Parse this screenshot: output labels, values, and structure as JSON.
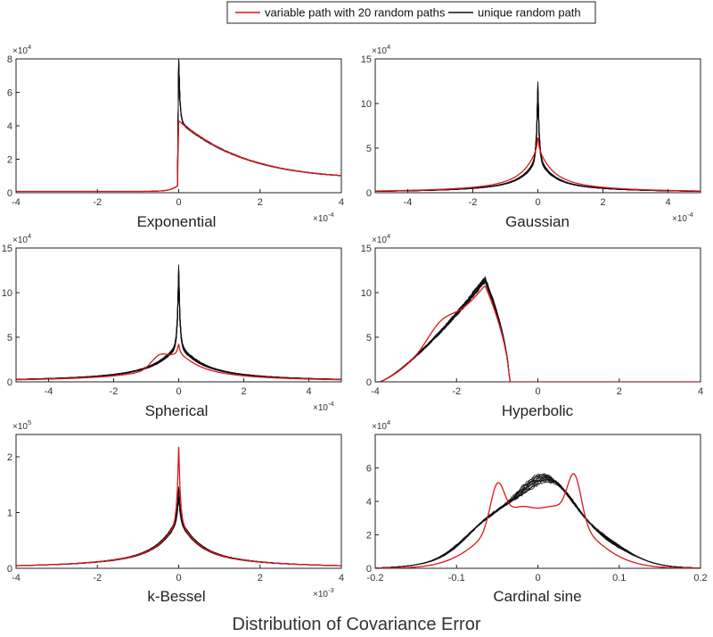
{
  "figure": {
    "title": "Distribution of Covariance Error",
    "legend": [
      {
        "label": "variable path with 20 random paths",
        "color": "#e0141b"
      },
      {
        "label": "unique random path",
        "color": "#111111"
      }
    ]
  },
  "chart_data": [
    {
      "type": "line",
      "title": "Exponential",
      "xlim": [
        -4,
        4
      ],
      "ylim": [
        0,
        8
      ],
      "xticks": [
        "-4",
        "-2",
        "0",
        "2",
        "4"
      ],
      "yticks": [
        "0",
        "2",
        "4",
        "6",
        "8"
      ],
      "x_multiplier": "×10",
      "x_exp": "-4",
      "y_multiplier": "×10",
      "y_exp": "4",
      "shape": "exp",
      "a": 0.08,
      "peak_black": 7.6,
      "peak_red": 4.5,
      "tail_end": 0.5,
      "tau": 1.9
    },
    {
      "type": "line",
      "title": "Gaussian",
      "xlim": [
        -5,
        5
      ],
      "ylim": [
        0,
        15
      ],
      "xticks": [
        "-4",
        "-2",
        "0",
        "2",
        "4"
      ],
      "yticks": [
        "0",
        "5",
        "10",
        "15"
      ],
      "x_multiplier": "×10",
      "x_exp": "-4",
      "y_multiplier": "×10",
      "y_exp": "4",
      "shape": "peak",
      "peak_black": 10.8,
      "peak_red": 6.0,
      "body_black": 3.3,
      "body_red": 4.6,
      "w": 0.45,
      "tail_w": 3.2
    },
    {
      "type": "line",
      "title": "Spherical",
      "xlim": [
        -5,
        5
      ],
      "ylim": [
        0,
        15
      ],
      "xticks": [
        "-4",
        "-2",
        "0",
        "2",
        "4"
      ],
      "yticks": [
        "0",
        "5",
        "10",
        "15"
      ],
      "x_multiplier": "×10",
      "x_exp": "-4",
      "y_multiplier": "×10",
      "y_exp": "4",
      "shape": "peak",
      "peak_black": 11.3,
      "peak_red": 4.0,
      "body_black": 3.5,
      "body_red": 3.0,
      "w": 0.7,
      "tail_w": 4.0
    },
    {
      "type": "line",
      "title": "Hyperbolic",
      "xlim": [
        -4,
        4
      ],
      "ylim": [
        0,
        15
      ],
      "xticks": [
        "-4",
        "-2",
        "0",
        "2",
        "4"
      ],
      "yticks": [
        "0",
        "5",
        "10",
        "15"
      ],
      "x_multiplier": "",
      "x_exp": "",
      "y_multiplier": "×10",
      "y_exp": "4",
      "shape": "hyper",
      "peak_black": 11.2,
      "peak_red": 10.8,
      "x_peak": -1.3,
      "x_start": -3.5,
      "x_end": -0.8
    },
    {
      "type": "line",
      "title": "k-Bessel",
      "xlim": [
        -4,
        4
      ],
      "ylim": [
        0,
        2.4
      ],
      "xticks": [
        "-4",
        "-2",
        "0",
        "2",
        "4"
      ],
      "yticks": [
        "0",
        "1",
        "2"
      ],
      "x_multiplier": "×10",
      "x_exp": "-3",
      "y_multiplier": "×10",
      "y_exp": "5",
      "shape": "peak",
      "peak_black": 1.25,
      "peak_red": 2.15,
      "body_black": 0.75,
      "body_red": 0.8,
      "w": 0.5,
      "tail_w": 2.4
    },
    {
      "type": "line",
      "title": "Cardinal sine",
      "xlim": [
        -0.2,
        0.2
      ],
      "ylim": [
        0,
        8
      ],
      "xticks": [
        "-0.2",
        "-0.1",
        "0",
        "0.1",
        "0.2"
      ],
      "yticks": [
        "0",
        "2",
        "4",
        "6"
      ],
      "x_multiplier": "",
      "x_exp": "",
      "y_multiplier": "×10",
      "y_exp": "4",
      "shape": "sinc",
      "peak_black": 5.0,
      "peak_red": 6.8
    }
  ]
}
